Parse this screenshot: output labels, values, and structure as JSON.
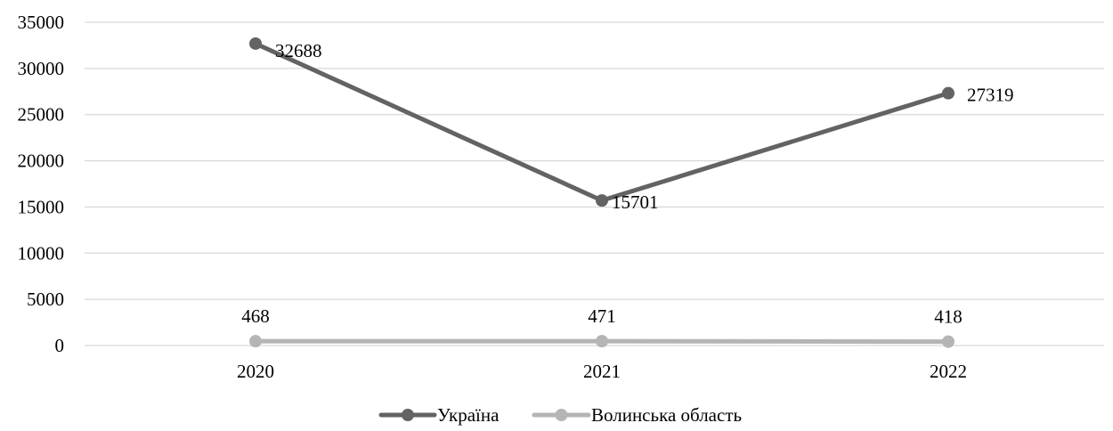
{
  "chart_data": {
    "type": "line",
    "title": "",
    "xlabel": "",
    "ylabel": "",
    "categories": [
      "2020",
      "2021",
      "2022"
    ],
    "ylim": [
      0,
      35000
    ],
    "y_ticks": [
      "0",
      "5000",
      "10000",
      "15000",
      "20000",
      "25000",
      "30000",
      "35000"
    ],
    "grid": "horizontal",
    "legend_position": "bottom",
    "series": [
      {
        "name": "Україна",
        "values": [
          32688,
          15701,
          27319
        ],
        "data_labels": [
          "32688",
          "15701",
          "27319"
        ],
        "color": "#636363"
      },
      {
        "name": "Волинська область",
        "values": [
          468,
          471,
          418
        ],
        "data_labels": [
          "468",
          "471",
          "418"
        ],
        "color": "#b5b5b5"
      }
    ]
  }
}
